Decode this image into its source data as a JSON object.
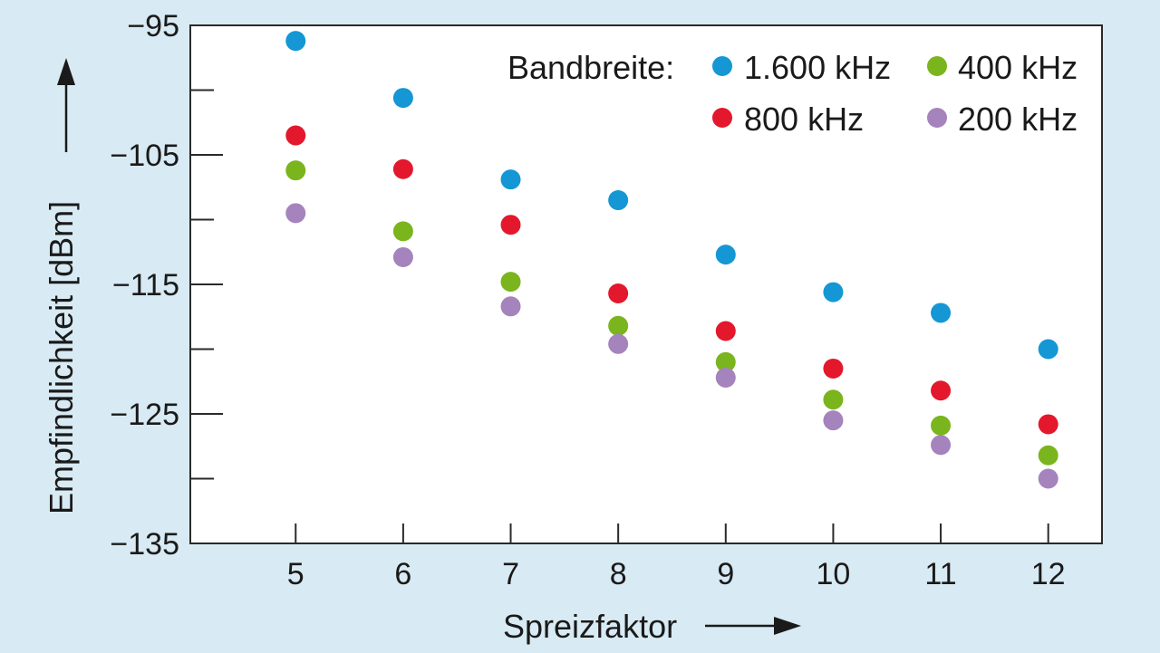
{
  "chart_data": {
    "type": "scatter",
    "xlabel": "Spreizfaktor",
    "ylabel": "Empfindlichkeit [dBm]",
    "x": [
      5,
      6,
      7,
      8,
      9,
      10,
      11,
      12
    ],
    "xlim": [
      4.02,
      12.5
    ],
    "ylim": [
      -135,
      -95
    ],
    "y_tick_labels": [
      "−95",
      "−105",
      "−115",
      "−125",
      "−135"
    ],
    "y_tick_values": [
      -95,
      -105,
      -115,
      -125,
      -135
    ],
    "y_minor_ticks": [
      -100,
      -110,
      -120,
      -130
    ],
    "x_tick_labels": [
      "5",
      "6",
      "7",
      "8",
      "9",
      "10",
      "11",
      "12"
    ],
    "legend_title": "Bandbreite:",
    "legend_position": "top-right",
    "series": [
      {
        "name": "1.600 kHz",
        "color": "#1497d4",
        "values": [
          -96.2,
          -100.6,
          -106.9,
          -108.5,
          -112.7,
          -115.6,
          -117.2,
          -120.0
        ]
      },
      {
        "name": "800 kHz",
        "color": "#e3182d",
        "values": [
          -103.5,
          -106.1,
          -110.4,
          -115.7,
          -118.6,
          -121.5,
          -123.2,
          -125.8
        ]
      },
      {
        "name": "400 kHz",
        "color": "#7ab51d",
        "values": [
          -106.2,
          -110.9,
          -114.8,
          -118.2,
          -121.0,
          -123.9,
          -125.9,
          -128.2
        ]
      },
      {
        "name": "200 kHz",
        "color": "#a583bd",
        "values": [
          -109.5,
          -112.9,
          -116.7,
          -119.6,
          -122.2,
          -125.5,
          -127.4,
          -130.0
        ]
      }
    ]
  }
}
